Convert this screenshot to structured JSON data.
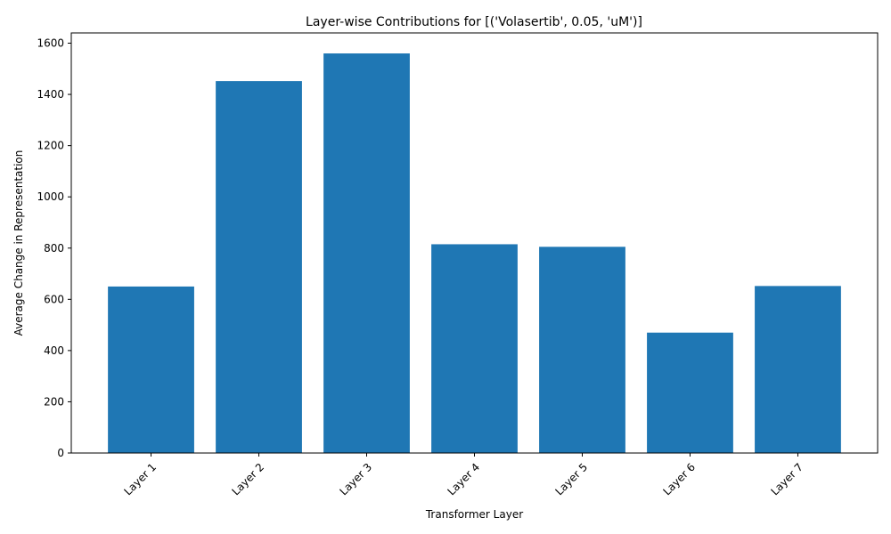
{
  "chart_data": {
    "type": "bar",
    "title": "Layer-wise Contributions for [('Volasertib', 0.05, 'uM')]",
    "xlabel": "Transformer Layer",
    "ylabel": "Average Change in Representation",
    "categories": [
      "Layer 1",
      "Layer 2",
      "Layer 3",
      "Layer 4",
      "Layer 5",
      "Layer 6",
      "Layer 7"
    ],
    "values": [
      650,
      1452,
      1560,
      815,
      805,
      470,
      652
    ],
    "ylim": [
      0,
      1640
    ],
    "yticks": [
      0,
      200,
      400,
      600,
      800,
      1000,
      1200,
      1400,
      1600
    ],
    "ytick_labels": [
      "0",
      "200",
      "400",
      "600",
      "800",
      "1000",
      "1200",
      "1400",
      "1600"
    ],
    "bar_color": "#1f77b4",
    "grid": false,
    "xtick_rotation": 45
  }
}
